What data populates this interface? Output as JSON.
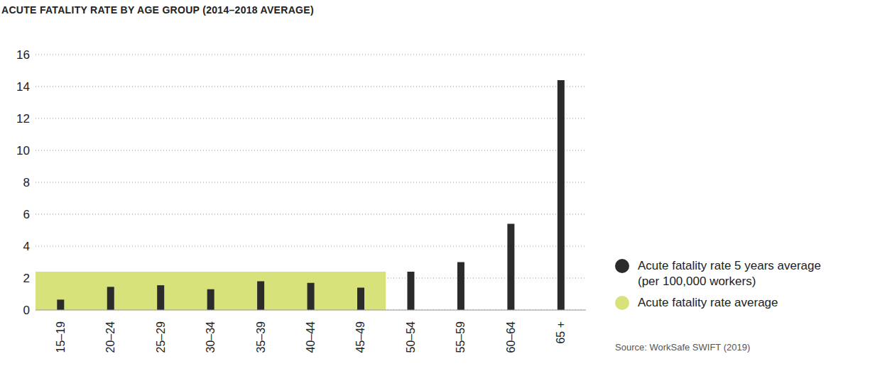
{
  "chart_data": {
    "type": "bar",
    "title": "ACUTE FATALITY RATE BY AGE GROUP (2014–2018 AVERAGE)",
    "source": "Source: WorkSafe SWIFT (2019)",
    "categories": [
      "15–19",
      "20–24",
      "25–29",
      "30–34",
      "35–39",
      "40–44",
      "45–49",
      "50–54",
      "55–59",
      "60–64",
      "65 +"
    ],
    "series": [
      {
        "name": "Acute fatality rate 5 years average (per 100,000 workers)",
        "type": "bar",
        "color": "#2b2b2b",
        "values": [
          0.65,
          1.45,
          1.55,
          1.3,
          1.8,
          1.7,
          1.4,
          2.4,
          3.0,
          5.4,
          14.4
        ]
      },
      {
        "name": "Acute fatality rate average",
        "type": "area",
        "color": "#d8e27a",
        "values": [
          2.4,
          2.4,
          2.4,
          2.4,
          2.4,
          2.4,
          2.4,
          null,
          null,
          null,
          null
        ]
      }
    ],
    "ylim": [
      0,
      16
    ],
    "yticks": [
      0,
      2,
      4,
      6,
      8,
      10,
      12,
      14,
      16
    ],
    "grid": true,
    "legend": "right"
  }
}
